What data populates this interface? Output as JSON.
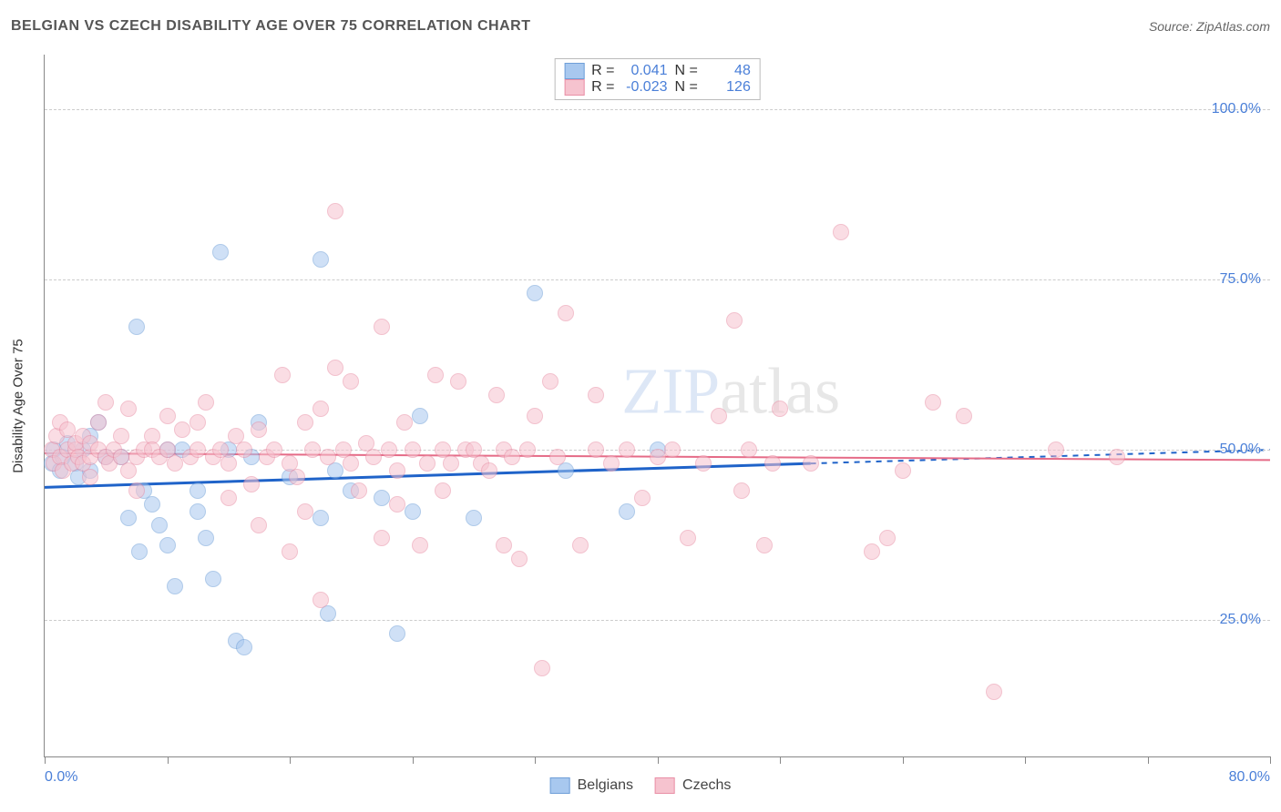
{
  "title": "BELGIAN VS CZECH DISABILITY AGE OVER 75 CORRELATION CHART",
  "source": "Source: ZipAtlas.com",
  "ylabel": "Disability Age Over 75",
  "watermark": {
    "part1": "ZIP",
    "part2": "atlas"
  },
  "chart": {
    "type": "scatter",
    "xlim": [
      0,
      80
    ],
    "ylim": [
      5,
      108
    ],
    "yticks": [
      25,
      50,
      75,
      100
    ],
    "ytick_labels": [
      "25.0%",
      "50.0%",
      "75.0%",
      "100.0%"
    ],
    "xticks": [
      0,
      8,
      16,
      24,
      32,
      40,
      48,
      56,
      64,
      72,
      80
    ],
    "xtick_labels_shown": {
      "0": "0.0%",
      "80": "80.0%"
    },
    "grid_color": "#cccccc",
    "axis_color": "#888888",
    "background_color": "#ffffff",
    "point_radius": 9,
    "point_opacity": 0.55,
    "series": [
      {
        "name": "Belgians",
        "color_fill": "#a8c8ef",
        "color_stroke": "#6f9fd8",
        "trend_color": "#1f63c9",
        "trend_width": 3,
        "trend": {
          "x0": 0,
          "y0": 44.5,
          "x1": 50,
          "y1": 48.0,
          "x2": 80,
          "y2": 50.0
        },
        "R": "0.041",
        "N": "48",
        "data": [
          [
            0.5,
            48
          ],
          [
            0.6,
            50
          ],
          [
            1,
            47
          ],
          [
            1.2,
            49
          ],
          [
            1.5,
            51
          ],
          [
            2,
            48
          ],
          [
            2.2,
            46
          ],
          [
            2.5,
            50
          ],
          [
            3,
            52
          ],
          [
            3,
            47
          ],
          [
            3.5,
            54
          ],
          [
            4,
            49
          ],
          [
            5,
            49
          ],
          [
            5.5,
            40
          ],
          [
            6,
            68
          ],
          [
            6.2,
            35
          ],
          [
            6.5,
            44
          ],
          [
            7,
            42
          ],
          [
            7.5,
            39
          ],
          [
            8,
            50
          ],
          [
            8,
            36
          ],
          [
            8.5,
            30
          ],
          [
            9,
            50
          ],
          [
            10,
            44
          ],
          [
            10,
            41
          ],
          [
            10.5,
            37
          ],
          [
            11,
            31
          ],
          [
            11.5,
            79
          ],
          [
            12,
            50
          ],
          [
            12.5,
            22
          ],
          [
            13,
            21
          ],
          [
            13.5,
            49
          ],
          [
            14,
            54
          ],
          [
            16,
            46
          ],
          [
            18,
            78
          ],
          [
            18,
            40
          ],
          [
            18.5,
            26
          ],
          [
            19,
            47
          ],
          [
            20,
            44
          ],
          [
            22,
            43
          ],
          [
            23,
            23
          ],
          [
            24,
            41
          ],
          [
            24.5,
            55
          ],
          [
            28,
            40
          ],
          [
            32,
            73
          ],
          [
            34,
            47
          ],
          [
            38,
            41
          ],
          [
            40,
            50
          ]
        ]
      },
      {
        "name": "Czechs",
        "color_fill": "#f6c3cf",
        "color_stroke": "#e98fa6",
        "trend_color": "#e56b87",
        "trend_width": 2,
        "trend": {
          "x0": 0,
          "y0": 49.5,
          "x1": 80,
          "y1": 48.5
        },
        "R": "-0.023",
        "N": "126",
        "data": [
          [
            0.5,
            50
          ],
          [
            0.6,
            48
          ],
          [
            0.8,
            52
          ],
          [
            1,
            49
          ],
          [
            1,
            54
          ],
          [
            1.2,
            47
          ],
          [
            1.5,
            50
          ],
          [
            1.5,
            53
          ],
          [
            1.8,
            48
          ],
          [
            2,
            50
          ],
          [
            2,
            51
          ],
          [
            2.2,
            49
          ],
          [
            2.5,
            48
          ],
          [
            2.5,
            52
          ],
          [
            3,
            49
          ],
          [
            3,
            51
          ],
          [
            3,
            46
          ],
          [
            3.5,
            50
          ],
          [
            3.5,
            54
          ],
          [
            4,
            49
          ],
          [
            4,
            57
          ],
          [
            4.2,
            48
          ],
          [
            4.5,
            50
          ],
          [
            5,
            49
          ],
          [
            5,
            52
          ],
          [
            5.5,
            47
          ],
          [
            5.5,
            56
          ],
          [
            6,
            49
          ],
          [
            6,
            44
          ],
          [
            6.5,
            50
          ],
          [
            7,
            52
          ],
          [
            7,
            50
          ],
          [
            7.5,
            49
          ],
          [
            8,
            50
          ],
          [
            8,
            55
          ],
          [
            8.5,
            48
          ],
          [
            9,
            53
          ],
          [
            9.5,
            49
          ],
          [
            10,
            50
          ],
          [
            10,
            54
          ],
          [
            10.5,
            57
          ],
          [
            11,
            49
          ],
          [
            11.5,
            50
          ],
          [
            12,
            48
          ],
          [
            12,
            43
          ],
          [
            12.5,
            52
          ],
          [
            13,
            50
          ],
          [
            13.5,
            45
          ],
          [
            14,
            53
          ],
          [
            14,
            39
          ],
          [
            14.5,
            49
          ],
          [
            15,
            50
          ],
          [
            15.5,
            61
          ],
          [
            16,
            48
          ],
          [
            16,
            35
          ],
          [
            16.5,
            46
          ],
          [
            17,
            54
          ],
          [
            17,
            41
          ],
          [
            17.5,
            50
          ],
          [
            18,
            56
          ],
          [
            18,
            28
          ],
          [
            18.5,
            49
          ],
          [
            19,
            62
          ],
          [
            19,
            85
          ],
          [
            19.5,
            50
          ],
          [
            20,
            48
          ],
          [
            20,
            60
          ],
          [
            20.5,
            44
          ],
          [
            21,
            51
          ],
          [
            21.5,
            49
          ],
          [
            22,
            68
          ],
          [
            22,
            37
          ],
          [
            22.5,
            50
          ],
          [
            23,
            47
          ],
          [
            23,
            42
          ],
          [
            23.5,
            54
          ],
          [
            24,
            50
          ],
          [
            24.5,
            36
          ],
          [
            25,
            48
          ],
          [
            25.5,
            61
          ],
          [
            26,
            50
          ],
          [
            26,
            44
          ],
          [
            26.5,
            48
          ],
          [
            27,
            60
          ],
          [
            27.5,
            50
          ],
          [
            28,
            50
          ],
          [
            28.5,
            48
          ],
          [
            29,
            47
          ],
          [
            29.5,
            58
          ],
          [
            30,
            50
          ],
          [
            30,
            36
          ],
          [
            30.5,
            49
          ],
          [
            31,
            34
          ],
          [
            31.5,
            50
          ],
          [
            32,
            55
          ],
          [
            32.5,
            18
          ],
          [
            33,
            60
          ],
          [
            33.5,
            49
          ],
          [
            34,
            70
          ],
          [
            35,
            36
          ],
          [
            36,
            50
          ],
          [
            36,
            58
          ],
          [
            37,
            48
          ],
          [
            38,
            50
          ],
          [
            39,
            43
          ],
          [
            40,
            49
          ],
          [
            41,
            50
          ],
          [
            42,
            37
          ],
          [
            43,
            48
          ],
          [
            44,
            55
          ],
          [
            45,
            69
          ],
          [
            45.5,
            44
          ],
          [
            46,
            50
          ],
          [
            47,
            36
          ],
          [
            47.5,
            48
          ],
          [
            48,
            56
          ],
          [
            50,
            48
          ],
          [
            52,
            82
          ],
          [
            54,
            35
          ],
          [
            55,
            37
          ],
          [
            56,
            47
          ],
          [
            58,
            57
          ],
          [
            60,
            55
          ],
          [
            62,
            14.5
          ],
          [
            66,
            50
          ],
          [
            70,
            49
          ]
        ]
      }
    ]
  },
  "legend_top": {
    "rows": [
      {
        "swatch_fill": "#a8c8ef",
        "swatch_stroke": "#6f9fd8",
        "r_label": "R =",
        "r_val": "0.041",
        "n_label": "N =",
        "n_val": "48"
      },
      {
        "swatch_fill": "#f6c3cf",
        "swatch_stroke": "#e98fa6",
        "r_label": "R =",
        "r_val": "-0.023",
        "n_label": "N =",
        "n_val": "126"
      }
    ]
  },
  "legend_bottom": [
    {
      "label": "Belgians",
      "fill": "#a8c8ef",
      "stroke": "#6f9fd8"
    },
    {
      "label": "Czechs",
      "fill": "#f6c3cf",
      "stroke": "#e98fa6"
    }
  ]
}
